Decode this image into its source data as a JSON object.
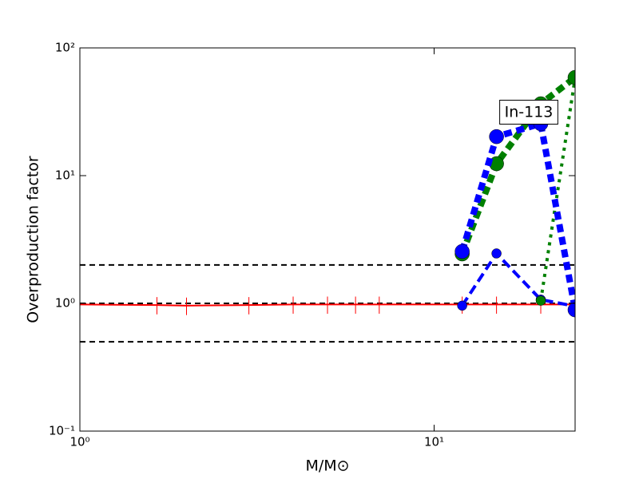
{
  "chart_data": {
    "type": "line",
    "xlabel": "M/M⊙",
    "ylabel": "Overproduction factor",
    "annotation": "In-113",
    "xscale": "log",
    "yscale": "log",
    "xlim": [
      1,
      25
    ],
    "ylim": [
      0.1,
      100
    ],
    "xticks": [
      {
        "value": 1,
        "label": "10⁰"
      },
      {
        "value": 10,
        "label": "10¹"
      }
    ],
    "yticks": [
      {
        "value": 0.1,
        "label": "10⁻¹"
      },
      {
        "value": 1,
        "label": "10⁰"
      },
      {
        "value": 10,
        "label": "10¹"
      },
      {
        "value": 100,
        "label": "10²"
      }
    ],
    "hlines": [
      2,
      1,
      0.5
    ],
    "hline_color": "#000000",
    "series": [
      {
        "color": "#ff0000",
        "linewidth": 2,
        "dash": "none",
        "marker_size": 0,
        "x": [
          1,
          1.65,
          2,
          3,
          4,
          5,
          6,
          7,
          12,
          15,
          20,
          25
        ],
        "values": [
          0.98,
          0.97,
          0.96,
          0.97,
          0.98,
          0.98,
          0.98,
          0.98,
          0.98,
          0.98,
          0.98,
          0.98
        ],
        "yerr": [
          0.15,
          0.15,
          0.15,
          0.15,
          0.15,
          0.15,
          0.15,
          0.15,
          0.15,
          0.15,
          0.15,
          0.15
        ]
      },
      {
        "color": "#0000ff",
        "linewidth": 4,
        "dash": "12,6",
        "marker_size": 6,
        "x": [
          12,
          15,
          20,
          25
        ],
        "values": [
          0.96,
          2.46,
          1.07,
          0.95
        ]
      },
      {
        "color": "#008000",
        "linewidth": 4,
        "dash": "4,6",
        "marker_size": 6,
        "x": [
          20,
          25
        ],
        "values": [
          1.05,
          58
        ]
      },
      {
        "color": "#008000",
        "linewidth": 8,
        "dash": "10,6",
        "marker_size": 9,
        "x": [
          12,
          15,
          20,
          25
        ],
        "values": [
          2.44,
          12.4,
          36.5,
          58.7
        ]
      },
      {
        "color": "#0000ff",
        "linewidth": 8,
        "dash": "10,6",
        "marker_size": 9,
        "x": [
          12,
          15,
          20,
          25
        ],
        "values": [
          2.55,
          20.2,
          25.5,
          0.89
        ]
      }
    ]
  }
}
